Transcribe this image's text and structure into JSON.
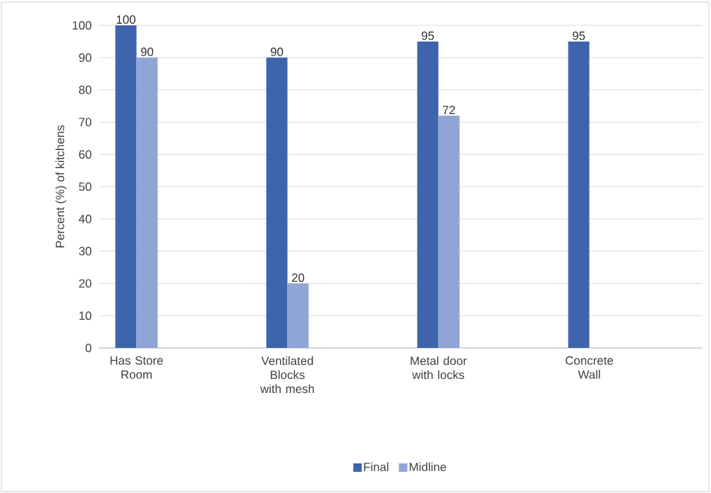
{
  "chart_data": {
    "type": "bar",
    "ylabel": "Percent (%) of kitchens",
    "categories": [
      "Has Store Room",
      "Ventilated Blocks with mesh",
      "Metal door with locks",
      "Concrete Wall"
    ],
    "series": [
      {
        "name": "Final",
        "color": "#3d64ad",
        "values": [
          100,
          90,
          95,
          95
        ]
      },
      {
        "name": "Midline",
        "color": "#8fa5d5",
        "values": [
          90,
          20,
          72,
          null
        ]
      }
    ],
    "ylim": [
      0,
      100
    ],
    "yticks": [
      0,
      10,
      20,
      30,
      40,
      50,
      60,
      70,
      80,
      90,
      100
    ],
    "grid": "y",
    "legend": "bottom",
    "data_labels": true
  }
}
